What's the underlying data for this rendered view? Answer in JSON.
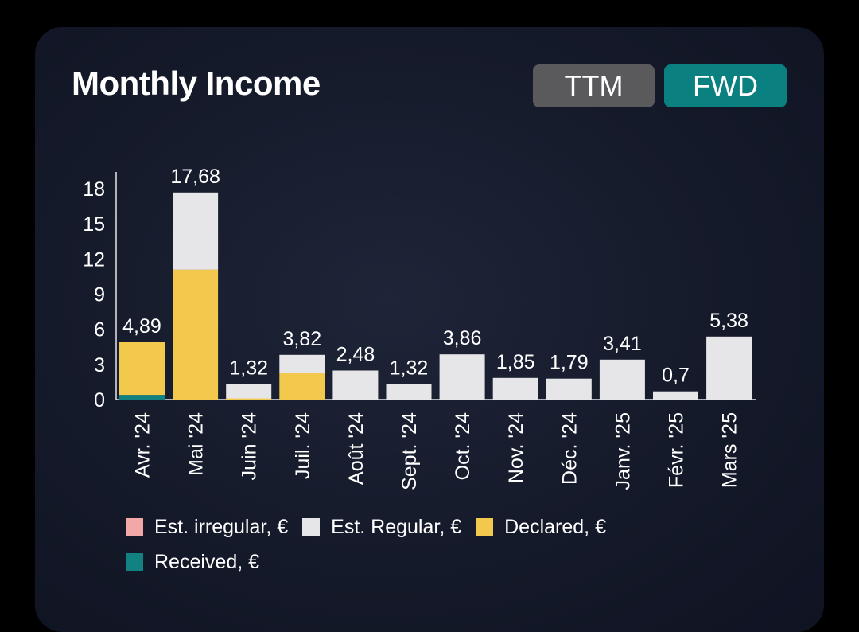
{
  "header": {
    "title": "Monthly Income",
    "toggle_ttm": "TTM",
    "toggle_fwd": "FWD"
  },
  "colors": {
    "est_irregular": "#f4a7a7",
    "est_regular": "#e6e6e8",
    "declared": "#f2c94c",
    "received": "#118181",
    "axis_text": "#ffffff",
    "axis_line": "#e6e6e8"
  },
  "chart_data": {
    "type": "bar",
    "stacked": true,
    "title": "Monthly Income",
    "xlabel": "",
    "ylabel": "",
    "ylim": [
      0,
      19
    ],
    "yticks": [
      0,
      3,
      6,
      9,
      12,
      15,
      18
    ],
    "categories": [
      "Avr. '24",
      "Mai '24",
      "Juin '24",
      "Juil. '24",
      "Août '24",
      "Sept. '24",
      "Oct. '24",
      "Nov. '24",
      "Déc. '24",
      "Janv. '25",
      "Févr. '25",
      "Mars '25"
    ],
    "totals_labels": [
      "4,89",
      "17,68",
      "1,32",
      "3,82",
      "2,48",
      "1,32",
      "3,86",
      "1,85",
      "1,79",
      "3,41",
      "0,7",
      "5,38"
    ],
    "series": [
      {
        "name": "Received, €",
        "color_key": "received",
        "values": [
          0.4,
          0,
          0,
          0,
          0,
          0,
          0,
          0,
          0,
          0,
          0,
          0
        ]
      },
      {
        "name": "Declared, €",
        "color_key": "declared",
        "values": [
          4.49,
          11.1,
          0.1,
          2.3,
          0,
          0,
          0,
          0,
          0,
          0,
          0,
          0
        ]
      },
      {
        "name": "Est. Regular, €",
        "color_key": "est_regular",
        "values": [
          0,
          6.58,
          1.22,
          1.52,
          2.48,
          1.32,
          3.86,
          1.85,
          1.79,
          3.41,
          0.7,
          5.38
        ]
      },
      {
        "name": "Est. irregular, €",
        "color_key": "est_irregular",
        "values": [
          0,
          0,
          0,
          0,
          0,
          0,
          0,
          0,
          0,
          0,
          0,
          0
        ]
      }
    ],
    "legend": {
      "position": "bottom-left",
      "items": [
        {
          "label": "Est. irregular, €",
          "color_key": "est_irregular"
        },
        {
          "label": "Est. Regular, €",
          "color_key": "est_regular"
        },
        {
          "label": "Declared, €",
          "color_key": "declared"
        },
        {
          "label": "Received, €",
          "color_key": "received"
        }
      ]
    }
  }
}
